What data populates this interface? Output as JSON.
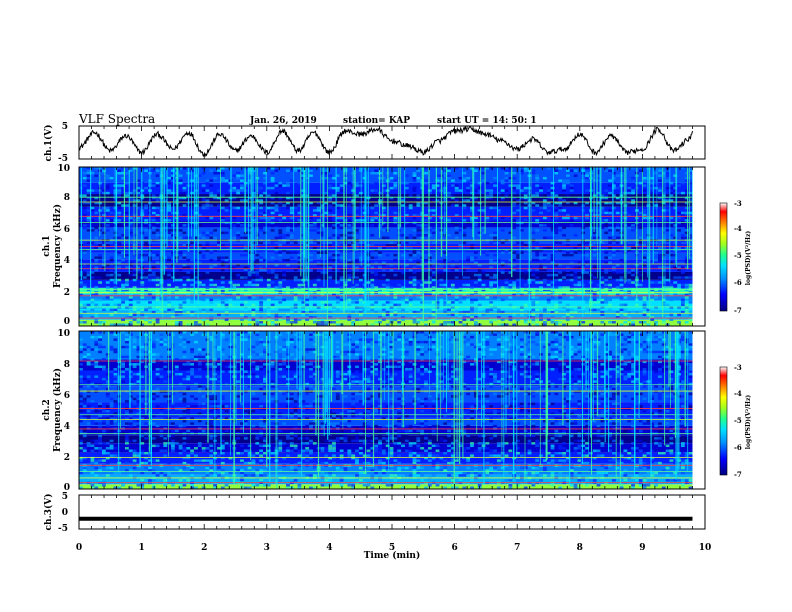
{
  "header": {
    "title": "VLF Spectra",
    "date": "Jan. 26, 2019",
    "station": "station= KAP",
    "start_ut": "start UT =  14: 50: 1"
  },
  "colors": {
    "trace": "#000000",
    "colormap": [
      "#000080",
      "#0000ff",
      "#0090ff",
      "#00e0ff",
      "#20ff90",
      "#a0ff20",
      "#ffff00",
      "#ff8000",
      "#ff0000",
      "#ffffff"
    ]
  },
  "chart_data": [
    {
      "id": "ch1_waveform",
      "type": "line",
      "ylabel": "ch.1(V)",
      "ylim": [
        -5,
        5
      ],
      "yticks": [
        "5",
        "-5"
      ],
      "xlim": [
        0,
        10
      ],
      "description_of_signal": "oscillating voltage trace, amplitude about ±4 V",
      "x": [
        0,
        0.25,
        0.5,
        0.75,
        1.0,
        1.25,
        1.5,
        1.75,
        2.0,
        2.25,
        2.5,
        2.75,
        3.0,
        3.25,
        3.5,
        3.75,
        4.0,
        4.25,
        4.5,
        4.75,
        5.0,
        5.25,
        5.5,
        5.75,
        6.0,
        6.25,
        6.5,
        6.75,
        7.0,
        7.25,
        7.5,
        7.75,
        8.0,
        8.25,
        8.5,
        8.75,
        9.0,
        9.25,
        9.5,
        9.75,
        9.8
      ],
      "values": [
        -1.5,
        3.0,
        -2.5,
        2.0,
        -3.0,
        2.5,
        -2.0,
        3.0,
        -3.5,
        2.5,
        -2.5,
        2.0,
        -3.0,
        3.5,
        -2.5,
        3.0,
        -3.0,
        3.5,
        2.5,
        4.0,
        0.5,
        -1.0,
        -3.0,
        0.5,
        3.5,
        4.0,
        2.5,
        0.5,
        -2.0,
        1.0,
        -3.0,
        -2.0,
        2.5,
        -3.0,
        2.0,
        -3.0,
        -2.0,
        4.0,
        -2.5,
        1.0,
        3.5
      ]
    },
    {
      "id": "ch1_spectrogram",
      "type": "heatmap",
      "ylabel": "ch.1\nFrequency (kHz)",
      "ylim": [
        0,
        10
      ],
      "yticks": [
        "0",
        "2",
        "4",
        "6",
        "8",
        "10"
      ],
      "xlim": [
        0,
        10
      ],
      "colorbar": {
        "label": "log(PSD)(V²/Hz)",
        "range": [
          -7,
          -3
        ],
        "ticks": [
          "-3",
          "-4",
          "-5",
          "-6",
          "-7"
        ]
      }
    },
    {
      "id": "ch2_spectrogram",
      "type": "heatmap",
      "ylabel": "ch.2\nFrequency (kHz)",
      "ylim": [
        0,
        10
      ],
      "yticks": [
        "0",
        "2",
        "4",
        "6",
        "8",
        "10"
      ],
      "xlim": [
        0,
        10
      ],
      "colorbar": {
        "label": "log(PSD)(V²/Hz)",
        "range": [
          -7,
          -3
        ],
        "ticks": [
          "-3",
          "-4",
          "-5",
          "-6",
          "-7"
        ]
      }
    },
    {
      "id": "ch3_waveform",
      "type": "line",
      "ylabel": "ch.3(V)",
      "ylim": [
        -5,
        5
      ],
      "yticks": [
        "5",
        "0",
        "-5"
      ],
      "xlim": [
        0,
        10
      ],
      "x": [
        0,
        9.8
      ],
      "values": [
        -2,
        -2
      ]
    }
  ],
  "xaxis": {
    "label": "Time (min)",
    "ticks": [
      "0",
      "1",
      "2",
      "3",
      "4",
      "5",
      "6",
      "7",
      "8",
      "9",
      "10"
    ]
  }
}
